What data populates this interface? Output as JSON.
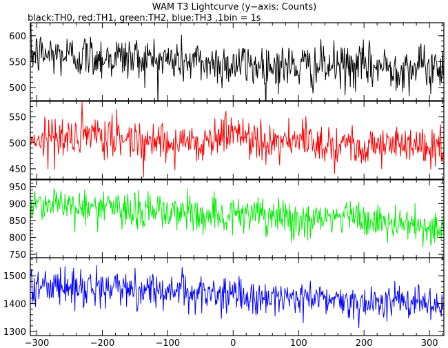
{
  "chart_data": {
    "type": "line",
    "title": "WAM T3 Lightcurve (y−axis: Counts)",
    "subtitle": "black:TH0, red:TH1, green:TH2, blue:TH3 ,1bin = 1s",
    "xlabel": "",
    "ylabel": "",
    "xlim": [
      -310,
      322
    ],
    "x_ticks": [
      -300,
      -200,
      -100,
      0,
      100,
      200,
      300
    ],
    "bin_seconds": 1,
    "grid": false,
    "panels": [
      {
        "name": "TH0",
        "color": "#000000",
        "ylim": [
          475,
          625
        ],
        "y_ticks": [
          500,
          550,
          600
        ],
        "anchors": [
          [
            -305,
            565
          ],
          [
            -250,
            562
          ],
          [
            -150,
            557
          ],
          [
            -50,
            548
          ],
          [
            0,
            545
          ],
          [
            100,
            540
          ],
          [
            200,
            540
          ],
          [
            320,
            538
          ]
        ],
        "noise": 22
      },
      {
        "name": "TH1",
        "color": "#ff0000",
        "ylim": [
          430,
          580
        ],
        "y_ticks": [
          450,
          500,
          550
        ],
        "anchors": [
          [
            -305,
            510
          ],
          [
            -200,
            510
          ],
          [
            -50,
            500
          ],
          [
            0,
            522
          ],
          [
            20,
            512
          ],
          [
            100,
            500
          ],
          [
            200,
            498
          ],
          [
            320,
            490
          ]
        ],
        "noise": 20
      },
      {
        "name": "TH2",
        "color": "#00ee00",
        "ylim": [
          740,
          970
        ],
        "y_ticks": [
          750,
          800,
          850,
          900,
          950
        ],
        "anchors": [
          [
            -305,
            905
          ],
          [
            -250,
            895
          ],
          [
            -150,
            878
          ],
          [
            -50,
            870
          ],
          [
            0,
            868
          ],
          [
            100,
            850
          ],
          [
            175,
            860
          ],
          [
            250,
            838
          ],
          [
            320,
            828
          ]
        ],
        "noise": 28
      },
      {
        "name": "TH3",
        "color": "#0000ff",
        "ylim": [
          1285,
          1565
        ],
        "y_ticks": [
          1300,
          1400,
          1500
        ],
        "anchors": [
          [
            -305,
            1465
          ],
          [
            -250,
            1460
          ],
          [
            -200,
            1455
          ],
          [
            -100,
            1450
          ],
          [
            0,
            1425
          ],
          [
            100,
            1420
          ],
          [
            200,
            1410
          ],
          [
            320,
            1395
          ]
        ],
        "noise": 32
      }
    ]
  }
}
